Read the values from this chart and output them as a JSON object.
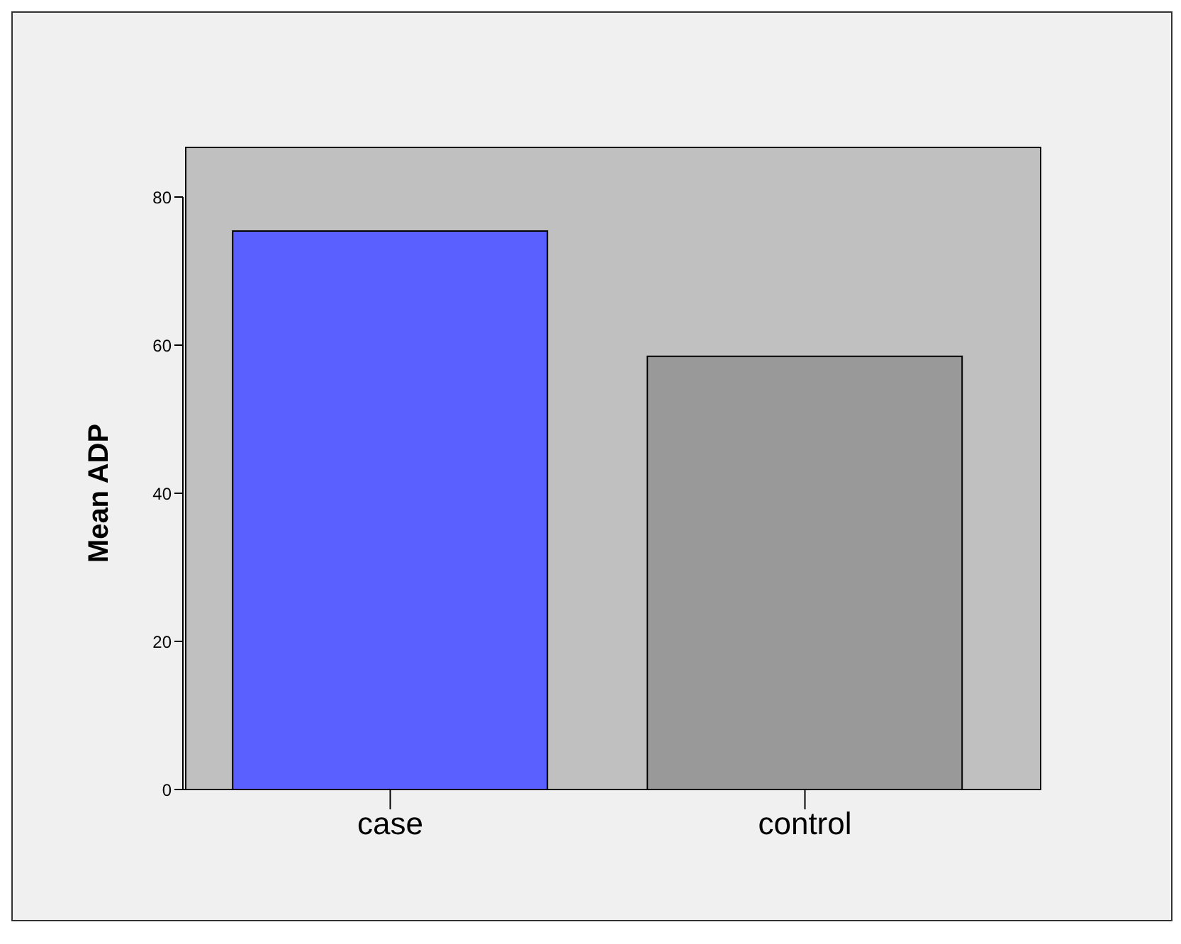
{
  "chart_data": {
    "type": "bar",
    "ylabel": "Mean ADP",
    "categories": [
      "case",
      "control"
    ],
    "values": [
      75.4,
      58.5
    ],
    "colors": [
      "#5a5fff",
      "#999999"
    ],
    "ylim": [
      0,
      80
    ],
    "yticks": [
      0,
      20,
      40,
      60,
      80
    ],
    "grid": false
  }
}
